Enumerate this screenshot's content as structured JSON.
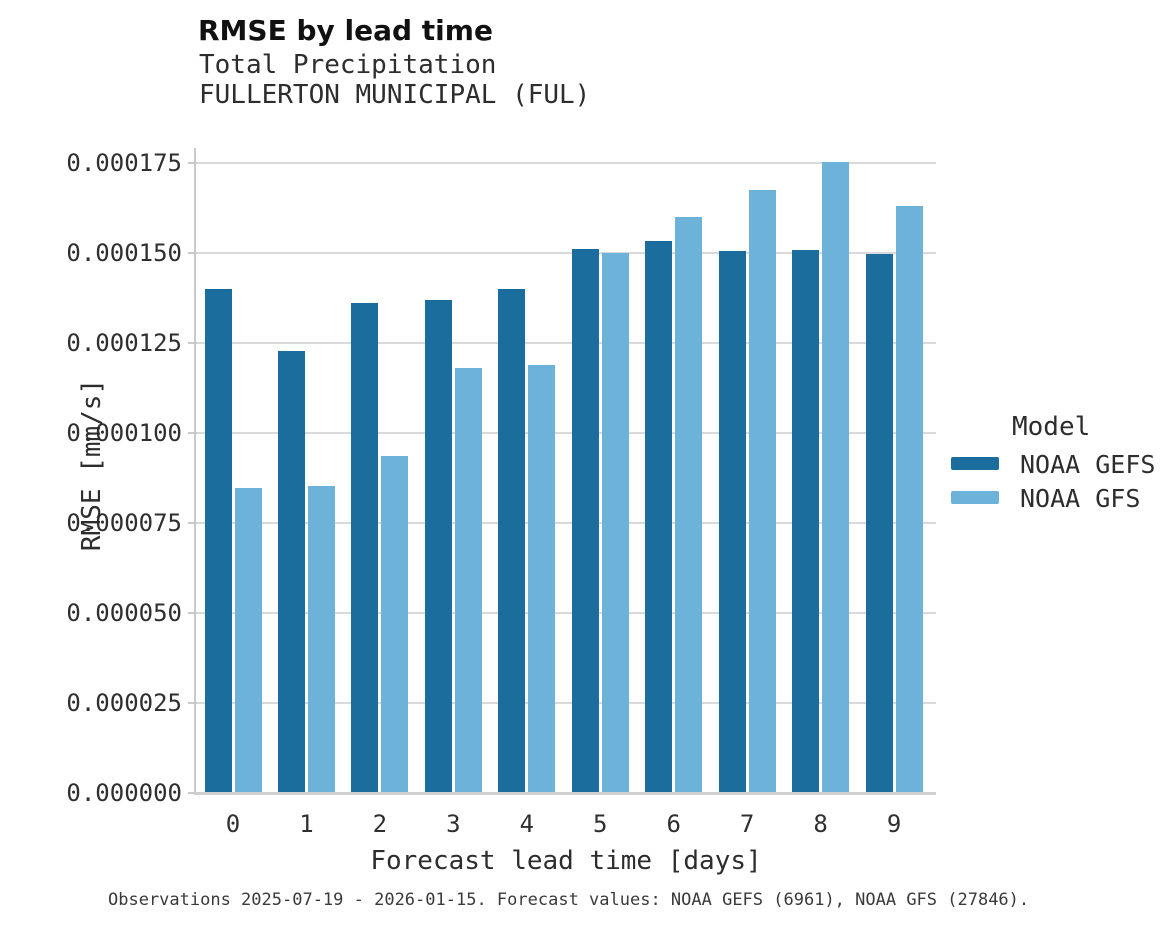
{
  "figure": {
    "title": "RMSE by lead time",
    "subtitle_lines": [
      "Total Precipitation",
      "FULLERTON MUNICIPAL (FUL)"
    ],
    "caption": "Observations 2025-07-19 - 2026-01-15. Forecast values: NOAA GEFS (6961), NOAA GFS (27846)."
  },
  "axes": {
    "x_label": "Forecast lead time [days]",
    "y_label": "RMSE [mm/s]"
  },
  "legend": {
    "title": "Model",
    "entries": [
      {
        "label": "NOAA GEFS",
        "color": "#1a6d9c"
      },
      {
        "label": "NOAA GFS",
        "color": "#6db2d9"
      }
    ]
  },
  "colors": {
    "gefs_bar": "#1a6d9c",
    "gfs_bar": "#6db2d9",
    "gridline": "#d9d9d9",
    "spine": "#c9cacb",
    "text": "#2f2f2f"
  },
  "chart_data": {
    "type": "bar",
    "title": "RMSE by lead time",
    "subtitle": "Total Precipitation / FULLERTON MUNICIPAL (FUL)",
    "xlabel": "Forecast lead time [days]",
    "ylabel": "RMSE [mm/s]",
    "categories": [
      "0",
      "1",
      "2",
      "3",
      "4",
      "5",
      "6",
      "7",
      "8",
      "9"
    ],
    "series": [
      {
        "name": "NOAA GEFS",
        "color": "#1a6d9c",
        "values": [
          0.00014,
          0.0001228,
          0.0001362,
          0.000137,
          0.00014,
          0.0001511,
          0.0001533,
          0.0001506,
          0.0001509,
          0.0001498
        ]
      },
      {
        "name": "NOAA GFS",
        "color": "#6db2d9",
        "values": [
          8.47e-05,
          8.53e-05,
          9.36e-05,
          0.0001181,
          0.0001189,
          0.00015,
          0.00016,
          0.0001675,
          0.0001752,
          0.000163
        ]
      }
    ],
    "ylim": [
      0,
      0.00018
    ],
    "ytick_step": 2.5e-05,
    "ytick_labels": [
      "0.000000",
      "0.000025",
      "0.000050",
      "0.000075",
      "0.000100",
      "0.000125",
      "0.000150",
      "0.000175"
    ],
    "grid": true,
    "legend_position": "right",
    "legend_title": "Model"
  }
}
